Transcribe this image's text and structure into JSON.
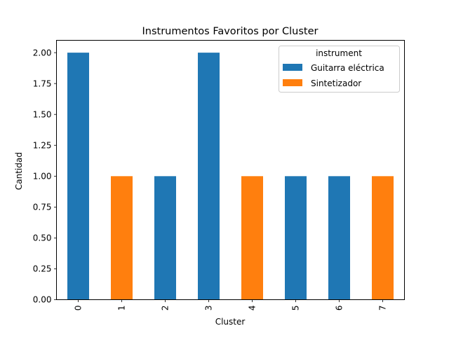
{
  "chart_data": {
    "type": "bar",
    "title": "Instrumentos Favoritos por Cluster",
    "xlabel": "Cluster",
    "ylabel": "Cantidad",
    "categories": [
      "0",
      "1",
      "2",
      "3",
      "4",
      "5",
      "6",
      "7"
    ],
    "series": [
      {
        "name": "Guitarra eléctrica",
        "color": "#1f77b4",
        "values": [
          2,
          0,
          1,
          2,
          0,
          1,
          1,
          0
        ]
      },
      {
        "name": "Sintetizador",
        "color": "#ff7f0e",
        "values": [
          0,
          1,
          0,
          0,
          1,
          0,
          0,
          1
        ]
      }
    ],
    "ylim": [
      0,
      2.1
    ],
    "yticks": [
      "0.00",
      "0.25",
      "0.50",
      "0.75",
      "1.00",
      "1.25",
      "1.50",
      "1.75",
      "2.00"
    ],
    "ytick_values": [
      0,
      0.25,
      0.5,
      0.75,
      1.0,
      1.25,
      1.5,
      1.75,
      2.0
    ],
    "stacked": true,
    "grid": false,
    "legend": {
      "title": "instrument",
      "placement": "top-right"
    }
  }
}
